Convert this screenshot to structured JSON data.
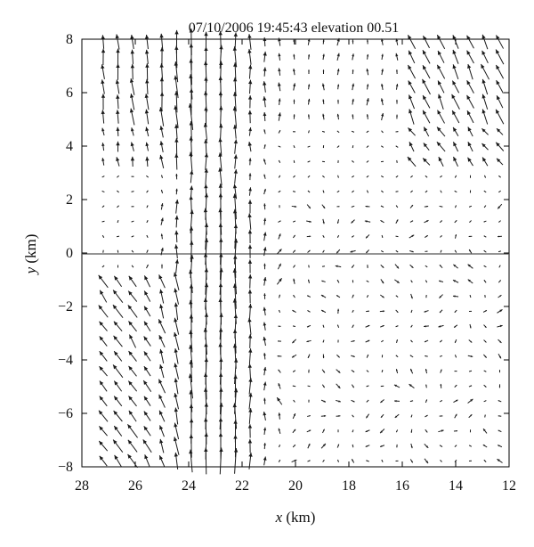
{
  "chart_data": {
    "type": "scatter",
    "subtype": "quiver",
    "title": "07/10/2006 19:45:43 elevation 00.51",
    "xlabel_var": "x",
    "xlabel_unit": " (km)",
    "ylabel_var": "y",
    "ylabel_unit": " (km)",
    "xlim": [
      28,
      12
    ],
    "ylim": [
      -8,
      8
    ],
    "x_ticks": [
      "28",
      "26",
      "24",
      "22",
      "20",
      "18",
      "16",
      "14",
      "12"
    ],
    "y_ticks": [
      "8",
      "6",
      "4",
      "2",
      "0",
      "−2",
      "−4",
      "−6",
      "−8"
    ],
    "x_tick_values": [
      28,
      26,
      24,
      22,
      20,
      18,
      16,
      14,
      12
    ],
    "y_tick_values": [
      8,
      6,
      4,
      2,
      0,
      -2,
      -4,
      -6,
      -8
    ],
    "grid": false,
    "zero_line": true,
    "field_grid": {
      "x_start": 27.2,
      "x_end": 12.2,
      "dx": -0.55,
      "y_start": 7.9,
      "y_end": -7.9,
      "dy": -0.56
    },
    "field_description": "Arrows depict a Doppler-derived vector field; strong northward flow along x ~ 22-24 km, diverging/converging weaker vectors elsewhere.",
    "colors": {
      "arrow": "#1a1a1a",
      "axis": "#000000",
      "zero_line": "#555555"
    }
  }
}
